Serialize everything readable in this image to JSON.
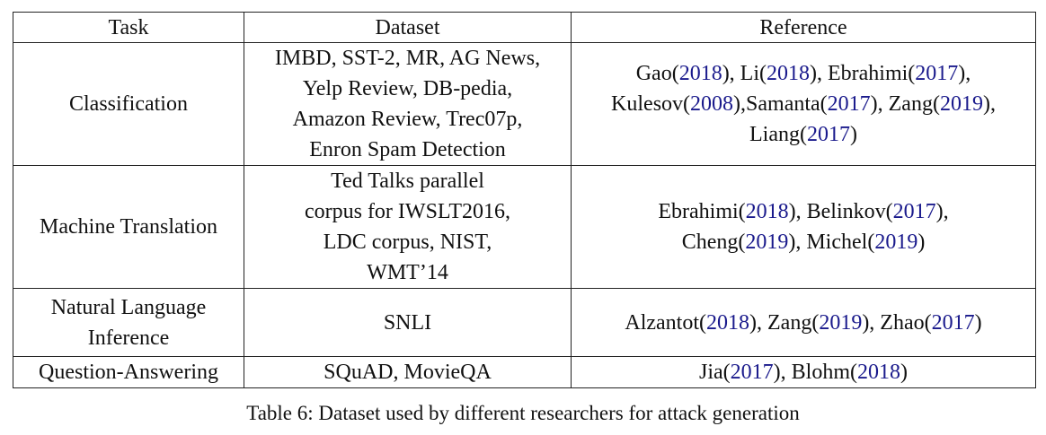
{
  "table": {
    "headers": [
      "Task",
      "Dataset",
      "Reference"
    ],
    "rows": [
      {
        "task": [
          "Classification"
        ],
        "dataset": [
          "IMBD, SST-2, MR, AG News,",
          "Yelp Review, DB-pedia,",
          "Amazon Review, Trec07p,",
          "Enron Spam Detection"
        ],
        "reference": [
          [
            {
              "t": "Gao("
            },
            {
              "y": "2018"
            },
            {
              "t": "), Li("
            },
            {
              "y": "2018"
            },
            {
              "t": "), Ebrahimi("
            },
            {
              "y": "2017"
            },
            {
              "t": "),"
            }
          ],
          [
            {
              "t": "Kulesov("
            },
            {
              "y": "2008"
            },
            {
              "t": "),Samanta("
            },
            {
              "y": "2017"
            },
            {
              "t": "), Zang("
            },
            {
              "y": "2019"
            },
            {
              "t": "),"
            }
          ],
          [
            {
              "t": "Liang("
            },
            {
              "y": "2017"
            },
            {
              "t": ")"
            }
          ]
        ]
      },
      {
        "task": [
          "Machine Translation"
        ],
        "dataset": [
          "Ted Talks parallel",
          "corpus for IWSLT2016,",
          "LDC corpus, NIST,",
          "WMT’14"
        ],
        "reference": [
          [
            {
              "t": "Ebrahimi("
            },
            {
              "y": "2018"
            },
            {
              "t": "), Belinkov("
            },
            {
              "y": "2017"
            },
            {
              "t": "),"
            }
          ],
          [
            {
              "t": "Cheng("
            },
            {
              "y": "2019"
            },
            {
              "t": "), Michel("
            },
            {
              "y": "2019"
            },
            {
              "t": ")"
            }
          ]
        ]
      },
      {
        "task": [
          "Natural Language",
          "Inference"
        ],
        "dataset": [
          "SNLI"
        ],
        "reference": [
          [
            {
              "t": "Alzantot("
            },
            {
              "y": "2018"
            },
            {
              "t": "), Zang("
            },
            {
              "y": "2019"
            },
            {
              "t": "), Zhao("
            },
            {
              "y": "2017"
            },
            {
              "t": ")"
            }
          ]
        ]
      },
      {
        "task": [
          "Question-Answering"
        ],
        "dataset": [
          "SQuAD, MovieQA"
        ],
        "reference": [
          [
            {
              "t": "Jia("
            },
            {
              "y": "2017"
            },
            {
              "t": "), Blohm("
            },
            {
              "y": "2018"
            },
            {
              "t": ")"
            }
          ]
        ]
      }
    ]
  },
  "caption": "Table 6: Dataset used by different researchers for attack generation",
  "colors": {
    "citation_year": "#1a1a8c",
    "text": "#111111",
    "rule": "#222222"
  }
}
